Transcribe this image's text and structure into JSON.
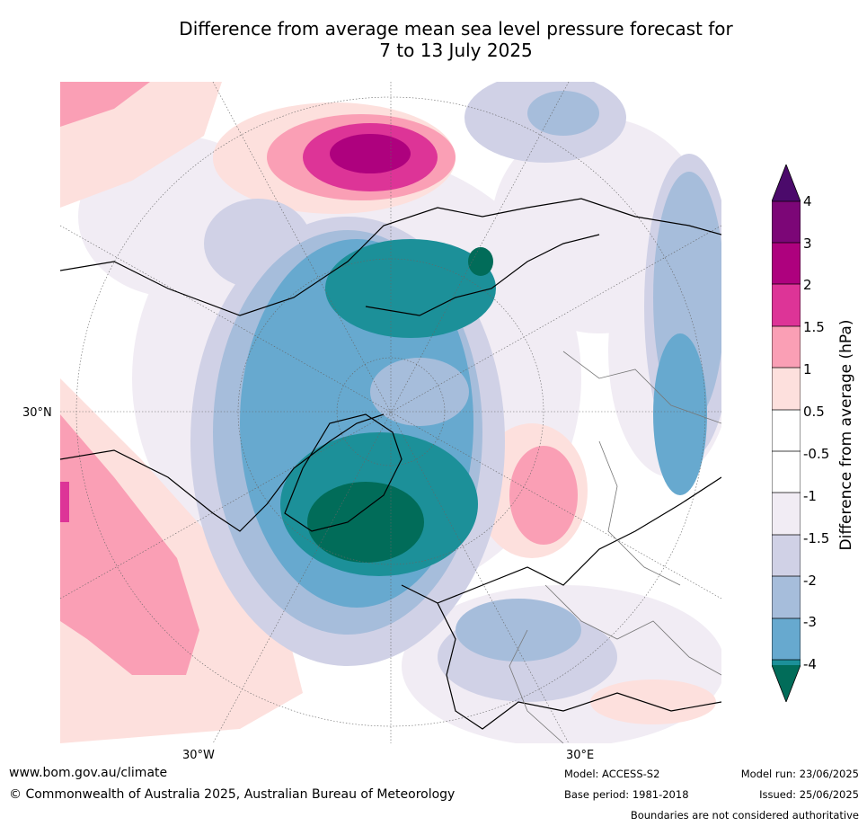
{
  "title_line1": "Difference from average mean sea level pressure forecast for",
  "title_line2": "7 to 13 July 2025",
  "map": {
    "lat_label_left": "30°N",
    "lon_label_left": "30°W",
    "lon_label_right": "30°E"
  },
  "colorbar": {
    "label": "Difference from average (hPa)",
    "ticks": [
      "4",
      "3",
      "2",
      "1.5",
      "1",
      "0.5",
      "-0.5",
      "-1",
      "-1.5",
      "-2",
      "-3",
      "-4"
    ],
    "colors": {
      "above_4": "#4b0a6b",
      "3_to_4": "#7c0677",
      "2_to_3": "#ae017e",
      "1.5_to_2": "#dd3497",
      "1_to_1.5": "#fa9fb5",
      "0.5_to_1": "#fde0dd",
      "-0.5_to_0.5": "#ffffff",
      "-1_to_-0.5": "#f1ecf4",
      "-1.5_to_-1": "#d0d1e6",
      "-2_to_-1.5": "#a6bddb",
      "-3_to_-2": "#67a9cf",
      "-4_to_-3": "#1c9099",
      "below_-4": "#016c59"
    }
  },
  "footer": {
    "website": "www.bom.gov.au/climate",
    "copyright": "© Commonwealth of Australia 2025, Australian Bureau of Meteorology",
    "model": "Model: ACCESS-S2",
    "base_period": "Base period: 1981-2018",
    "model_run": "Model run: 23/06/2025",
    "issued": "Issued: 25/06/2025",
    "disclaimer": "Boundaries are not considered authoritative"
  }
}
